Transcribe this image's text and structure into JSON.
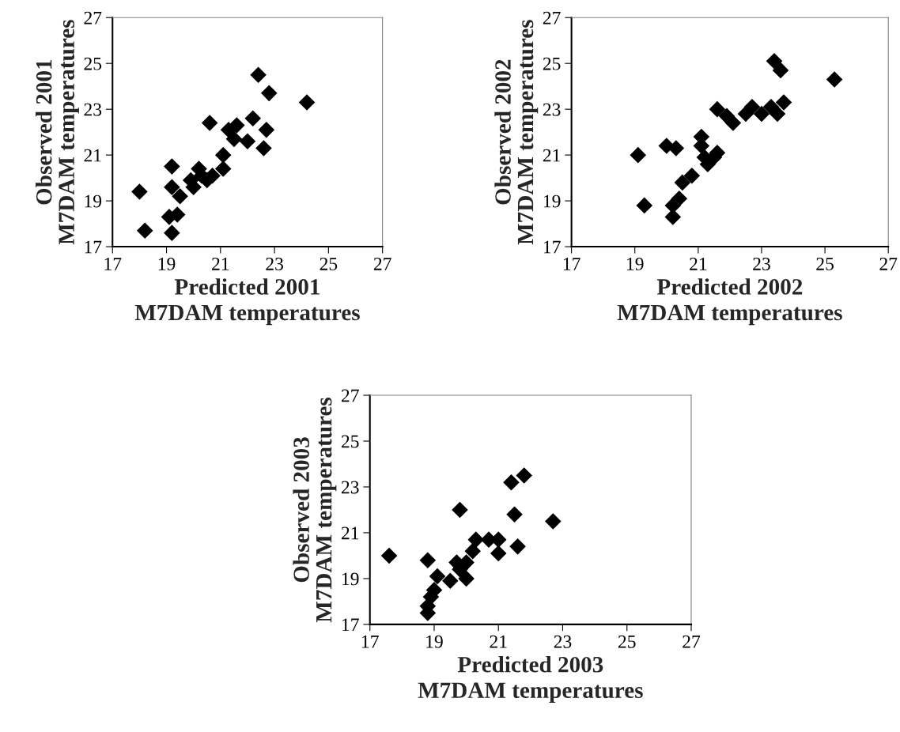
{
  "chart_data": [
    {
      "type": "scatter",
      "xlabel": "Predicted 2001\nM7DAM temperatures",
      "ylabel": "Observed 2001\nM7DAM temperatures",
      "marker": "diamond",
      "grid": false,
      "xlim": [
        17,
        27
      ],
      "ylim": [
        17,
        27
      ],
      "xticks": [
        17,
        19,
        21,
        23,
        25,
        27
      ],
      "yticks": [
        17,
        19,
        21,
        23,
        25,
        27
      ],
      "series": [
        {
          "color": "#000000",
          "x": [
            18.0,
            18.2,
            19.2,
            19.2,
            19.1,
            19.4,
            19.2,
            19.5,
            19.9,
            20.0,
            20.2,
            20.3,
            20.5,
            20.7,
            20.6,
            21.1,
            21.1,
            21.3,
            21.6,
            21.5,
            22.0,
            22.2,
            22.4,
            22.7,
            22.6,
            22.8,
            24.2
          ],
          "values": [
            19.4,
            17.7,
            20.5,
            19.6,
            18.3,
            18.4,
            17.6,
            19.2,
            19.9,
            19.6,
            20.4,
            20.1,
            19.9,
            20.1,
            22.4,
            20.4,
            21.0,
            22.1,
            22.3,
            21.7,
            21.6,
            22.6,
            24.5,
            22.1,
            21.3,
            23.7,
            23.3
          ]
        }
      ]
    },
    {
      "type": "scatter",
      "xlabel": "Predicted 2002\nM7DAM temperatures",
      "ylabel": "Observed 2002\nM7DAM temperatures",
      "marker": "diamond",
      "grid": false,
      "xlim": [
        17,
        27
      ],
      "ylim": [
        17,
        27
      ],
      "xticks": [
        17,
        19,
        21,
        23,
        25,
        27
      ],
      "yticks": [
        17,
        19,
        21,
        23,
        25,
        27
      ],
      "series": [
        {
          "color": "#000000",
          "x": [
            19.1,
            19.3,
            20.0,
            20.3,
            20.2,
            20.2,
            20.4,
            20.5,
            20.8,
            21.1,
            21.1,
            21.2,
            21.3,
            21.5,
            21.6,
            21.6,
            21.9,
            22.1,
            22.5,
            22.7,
            23.0,
            23.3,
            23.5,
            23.4,
            23.6,
            23.7,
            25.3
          ],
          "values": [
            21.0,
            18.8,
            21.4,
            21.3,
            18.3,
            18.8,
            19.1,
            19.8,
            20.1,
            21.8,
            21.4,
            20.9,
            20.6,
            20.9,
            21.1,
            23.0,
            22.7,
            22.4,
            22.8,
            23.1,
            22.8,
            23.1,
            22.8,
            25.1,
            24.7,
            23.3,
            24.3
          ]
        }
      ]
    },
    {
      "type": "scatter",
      "xlabel": "Predicted 2003\nM7DAM temperatures",
      "ylabel": "Observed 2003\nM7DAM temperatures",
      "marker": "diamond",
      "grid": false,
      "xlim": [
        17,
        27
      ],
      "ylim": [
        17,
        27
      ],
      "xticks": [
        17,
        19,
        21,
        23,
        25,
        27
      ],
      "yticks": [
        17,
        19,
        21,
        23,
        25,
        27
      ],
      "series": [
        {
          "color": "#000000",
          "x": [
            17.6,
            18.8,
            18.8,
            18.8,
            18.9,
            19.0,
            19.1,
            19.5,
            19.7,
            19.8,
            20.0,
            20.0,
            20.2,
            19.8,
            20.3,
            20.7,
            21.0,
            21.0,
            21.4,
            21.8,
            21.5,
            21.6,
            22.7
          ],
          "values": [
            20.0,
            19.8,
            17.5,
            17.8,
            18.2,
            18.5,
            19.1,
            18.9,
            19.7,
            19.4,
            19.0,
            19.7,
            20.2,
            22.0,
            20.7,
            20.7,
            20.7,
            20.1,
            23.2,
            23.5,
            21.8,
            20.4,
            21.5
          ]
        }
      ]
    }
  ]
}
